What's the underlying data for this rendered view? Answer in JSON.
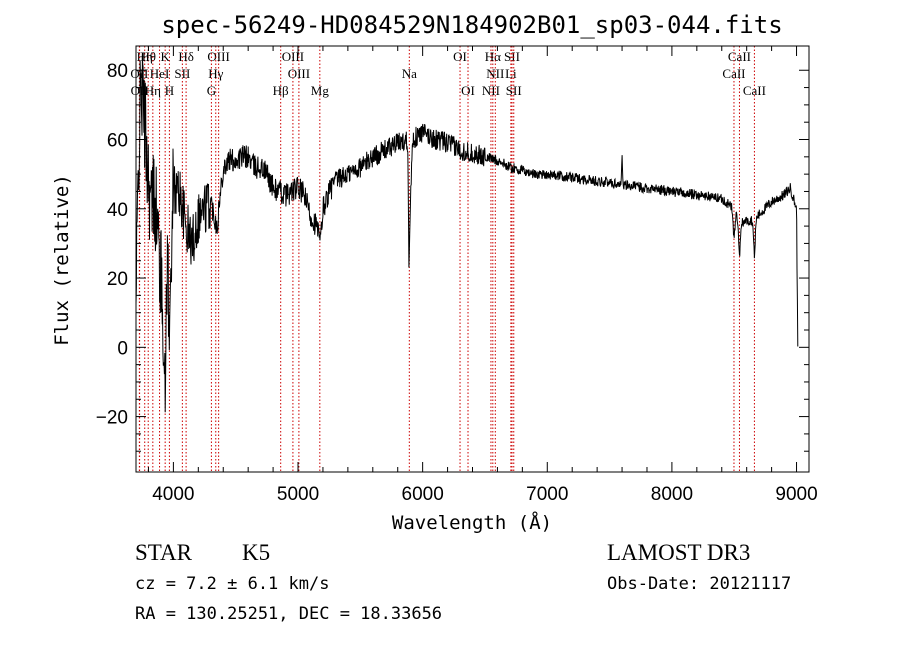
{
  "chart_data": {
    "type": "line",
    "title": "spec-56249-HD084529N184902B01_sp03-044.fits",
    "xlabel": "Wavelength (Å)",
    "ylabel": "Flux (relative)",
    "xlim": [
      3700,
      9100
    ],
    "ylim": [
      -36,
      87
    ],
    "xticks": [
      4000,
      5000,
      6000,
      7000,
      8000,
      9000
    ],
    "yticks": [
      -20,
      0,
      20,
      40,
      60,
      80
    ],
    "spectrum_anchors": [
      [
        3700,
        10
      ],
      [
        3720,
        55
      ],
      [
        3740,
        75
      ],
      [
        3760,
        70
      ],
      [
        3780,
        60
      ],
      [
        3800,
        50
      ],
      [
        3820,
        40
      ],
      [
        3850,
        45
      ],
      [
        3880,
        30
      ],
      [
        3900,
        20
      ],
      [
        3920,
        10
      ],
      [
        3950,
        25
      ],
      [
        3980,
        30
      ],
      [
        4000,
        45
      ],
      [
        4050,
        45
      ],
      [
        4100,
        35
      ],
      [
        4150,
        30
      ],
      [
        4200,
        38
      ],
      [
        4250,
        40
      ],
      [
        4300,
        42
      ],
      [
        4350,
        35
      ],
      [
        4400,
        52
      ],
      [
        4450,
        54
      ],
      [
        4500,
        54
      ],
      [
        4550,
        55
      ],
      [
        4600,
        55
      ],
      [
        4650,
        52
      ],
      [
        4700,
        52
      ],
      [
        4750,
        50
      ],
      [
        4800,
        46
      ],
      [
        4850,
        45
      ],
      [
        4900,
        44
      ],
      [
        4950,
        45
      ],
      [
        5000,
        46
      ],
      [
        5050,
        44
      ],
      [
        5100,
        38
      ],
      [
        5150,
        35
      ],
      [
        5180,
        30
      ],
      [
        5200,
        40
      ],
      [
        5250,
        45
      ],
      [
        5300,
        48
      ],
      [
        5400,
        50
      ],
      [
        5500,
        52
      ],
      [
        5600,
        55
      ],
      [
        5700,
        57
      ],
      [
        5800,
        59
      ],
      [
        5890,
        60
      ],
      [
        5900,
        40
      ],
      [
        5920,
        60
      ],
      [
        6000,
        62
      ],
      [
        6100,
        60
      ],
      [
        6200,
        59
      ],
      [
        6300,
        57
      ],
      [
        6400,
        56
      ],
      [
        6500,
        55
      ],
      [
        6600,
        54
      ],
      [
        6700,
        52
      ],
      [
        6800,
        51
      ],
      [
        6900,
        50
      ],
      [
        7000,
        50
      ],
      [
        7200,
        49
      ],
      [
        7400,
        48
      ],
      [
        7600,
        47
      ],
      [
        7800,
        46
      ],
      [
        8000,
        45
      ],
      [
        8200,
        44
      ],
      [
        8400,
        43
      ],
      [
        8498,
        40
      ],
      [
        8542,
        36
      ],
      [
        8662,
        37
      ],
      [
        8800,
        42
      ],
      [
        8900,
        44
      ],
      [
        8950,
        46
      ],
      [
        9000,
        40
      ],
      [
        9010,
        0
      ]
    ],
    "spectrum_features": [
      {
        "x": 3933,
        "depth": 34,
        "width": 8,
        "note": "CaII K"
      },
      {
        "x": 3968,
        "depth": 30,
        "width": 8,
        "note": "CaII H"
      },
      {
        "x": 5890,
        "depth": 34,
        "width": 6,
        "note": "Na D"
      },
      {
        "x": 8498,
        "depth": 8,
        "width": 10,
        "note": "CaII"
      },
      {
        "x": 8542,
        "depth": 10,
        "width": 10,
        "note": "CaII"
      },
      {
        "x": 8662,
        "depth": 10,
        "width": 10,
        "note": "CaII"
      },
      {
        "x": 7600,
        "depth": -8,
        "width": 6,
        "note": "spike"
      }
    ],
    "line_markers": [
      {
        "label": "Hη",
        "x": 3770,
        "row": 0
      },
      {
        "label": "Hθ",
        "x": 3798,
        "row": 0
      },
      {
        "label": "K",
        "x": 3934,
        "row": 0
      },
      {
        "label": "Hδ",
        "x": 4102,
        "row": 0
      },
      {
        "label": "OIII",
        "x": 4363,
        "row": 0
      },
      {
        "label": "OIII",
        "x": 4959,
        "row": 0
      },
      {
        "label": "OI",
        "x": 6300,
        "row": 0
      },
      {
        "label": "Hα",
        "x": 6563,
        "row": 0
      },
      {
        "label": "SII",
        "x": 6717,
        "row": 0
      },
      {
        "label": "CaII",
        "x": 8542,
        "row": 0
      },
      {
        "label": "OII",
        "x": 3727,
        "row": 1
      },
      {
        "label": "HeI",
        "x": 3889,
        "row": 1
      },
      {
        "label": "SII",
        "x": 4072,
        "row": 1
      },
      {
        "label": "Hγ",
        "x": 4340,
        "row": 1
      },
      {
        "label": "OIII",
        "x": 5007,
        "row": 1
      },
      {
        "label": "Na",
        "x": 5893,
        "row": 1
      },
      {
        "label": "NII",
        "x": 6583,
        "row": 1
      },
      {
        "label": "Li",
        "x": 6708,
        "row": 1
      },
      {
        "label": "CaII",
        "x": 8498,
        "row": 1
      },
      {
        "label": "OII",
        "x": 3729,
        "row": 2
      },
      {
        "label": "Hη",
        "x": 3835,
        "row": 2
      },
      {
        "label": "H",
        "x": 3968,
        "row": 2
      },
      {
        "label": "G",
        "x": 4305,
        "row": 2
      },
      {
        "label": "Hβ",
        "x": 4861,
        "row": 2
      },
      {
        "label": "Mg",
        "x": 5175,
        "row": 2
      },
      {
        "label": "OI",
        "x": 6364,
        "row": 2
      },
      {
        "label": "NII",
        "x": 6548,
        "row": 2
      },
      {
        "label": "SII",
        "x": 6731,
        "row": 2
      },
      {
        "label": "CaII",
        "x": 8662,
        "row": 2
      }
    ],
    "marker_color": "#cc0000"
  },
  "footer": {
    "class_label": "STAR",
    "subclass_label": "K5",
    "survey_label": "LAMOST DR3",
    "cz_text": "cz = 7.2 ± 6.1 km/s",
    "obs_date_text": "Obs-Date: 20121117",
    "coords_text": "RA = 130.25251, DEC =  18.33656"
  }
}
